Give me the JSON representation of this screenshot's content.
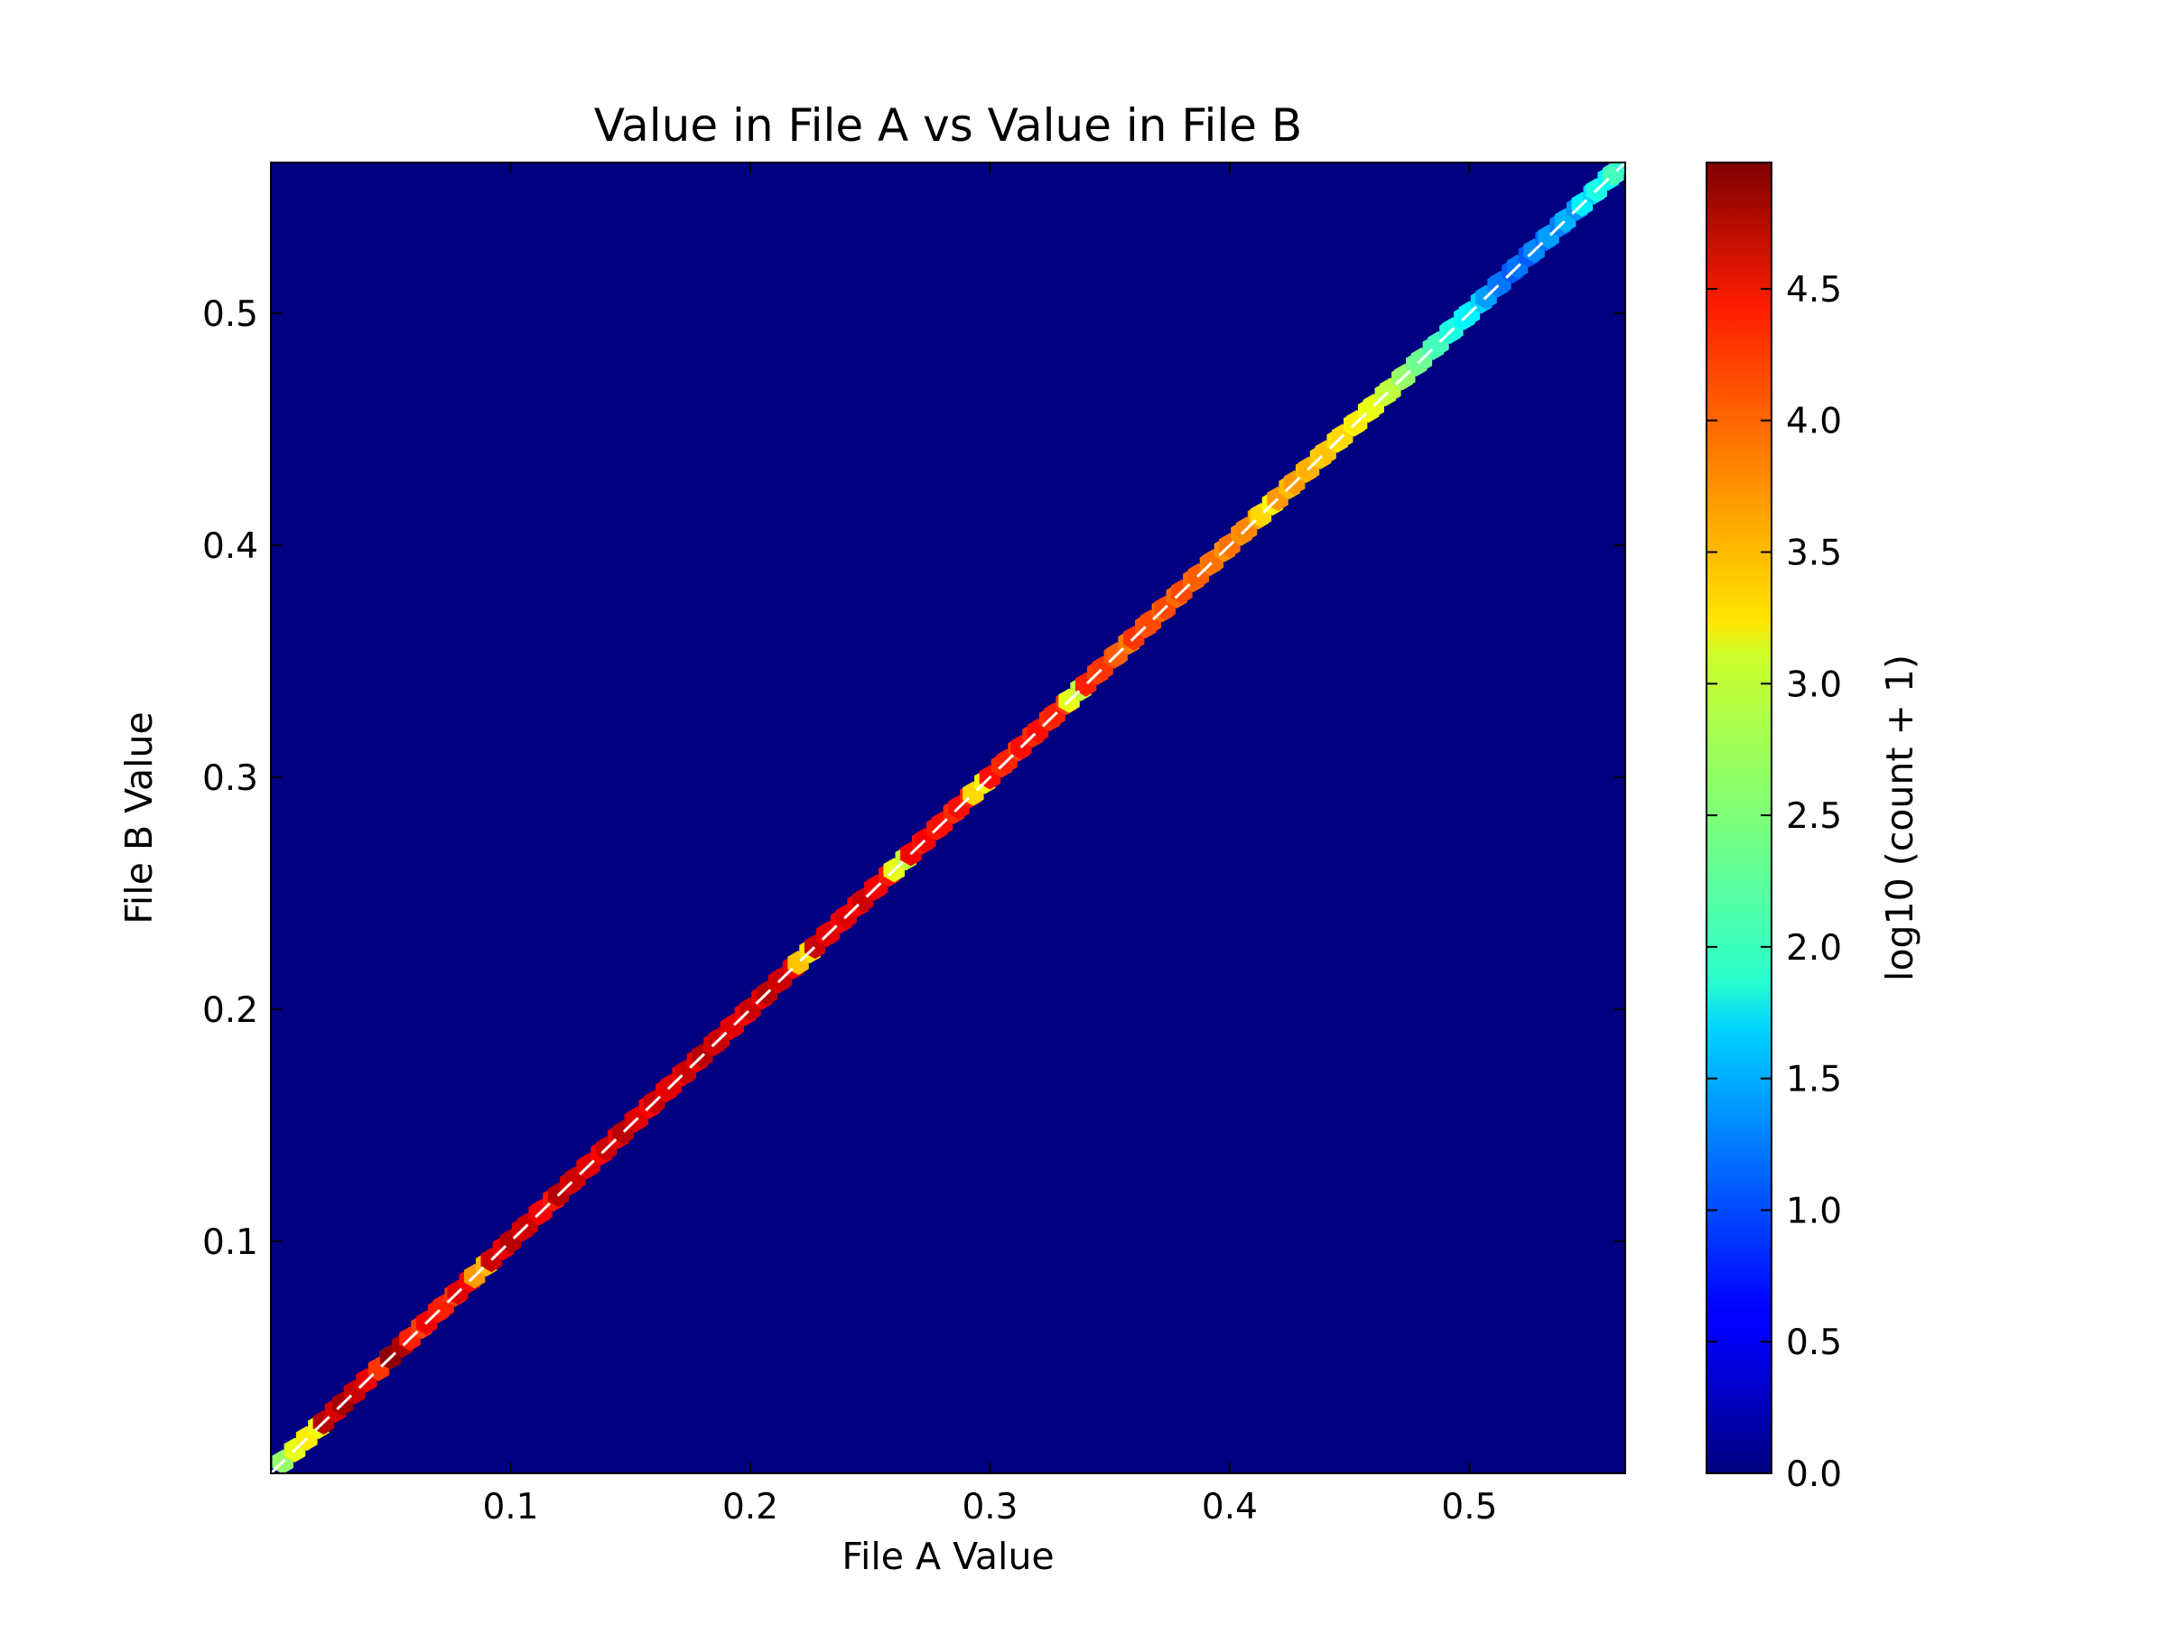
{
  "chart_data": {
    "type": "heatmap",
    "subtype": "hexbin",
    "title": "Value in File A vs Value in File B",
    "xlabel": "File A Value",
    "ylabel": "File B Value",
    "xlim": [
      0.0,
      0.565
    ],
    "ylim": [
      0.0,
      0.565
    ],
    "x_ticks": [
      0.1,
      0.2,
      0.3,
      0.4,
      0.5
    ],
    "x_tick_labels": [
      "0.1",
      "0.2",
      "0.3",
      "0.4",
      "0.5"
    ],
    "y_ticks": [
      0.1,
      0.2,
      0.3,
      0.4,
      0.5
    ],
    "y_tick_labels": [
      "0.1",
      "0.2",
      "0.3",
      "0.4",
      "0.5"
    ],
    "background_color": "#000080",
    "reference_line": {
      "style": "dashed",
      "color": "#ffffff",
      "from": [
        0.0,
        0.0
      ],
      "to": [
        0.565,
        0.565
      ]
    },
    "colorbar": {
      "label": "log10 (count + 1)",
      "colormap": "jet",
      "range": [
        0.0,
        4.98
      ],
      "ticks": [
        0.0,
        0.5,
        1.0,
        1.5,
        2.0,
        2.5,
        3.0,
        3.5,
        4.0,
        4.5
      ],
      "tick_labels": [
        "0.0",
        "0.5",
        "1.0",
        "1.5",
        "2.0",
        "2.5",
        "3.0",
        "3.5",
        "4.0",
        "4.5"
      ]
    },
    "grid": false,
    "bins": {
      "x": [
        0.005,
        0.01,
        0.015,
        0.022,
        0.03,
        0.035,
        0.045,
        0.05,
        0.058,
        0.065,
        0.072,
        0.078,
        0.085,
        0.092,
        0.1,
        0.107,
        0.113,
        0.12,
        0.127,
        0.133,
        0.14,
        0.147,
        0.153,
        0.16,
        0.167,
        0.173,
        0.18,
        0.187,
        0.193,
        0.2,
        0.207,
        0.213,
        0.22,
        0.227,
        0.233,
        0.24,
        0.247,
        0.253,
        0.26,
        0.267,
        0.273,
        0.28,
        0.287,
        0.293,
        0.3,
        0.307,
        0.313,
        0.32,
        0.327,
        0.333,
        0.34,
        0.347,
        0.353,
        0.36,
        0.367,
        0.373,
        0.38,
        0.387,
        0.393,
        0.4,
        0.407,
        0.413,
        0.42,
        0.427,
        0.433,
        0.44,
        0.447,
        0.453,
        0.46,
        0.467,
        0.473,
        0.48,
        0.487,
        0.493,
        0.5,
        0.507,
        0.513,
        0.52,
        0.527,
        0.533,
        0.54,
        0.547,
        0.553,
        0.56
      ],
      "values": [
        2.6,
        3.0,
        3.2,
        4.7,
        4.8,
        4.6,
        4.1,
        4.9,
        4.2,
        4.4,
        4.2,
        4.5,
        3.6,
        4.6,
        4.7,
        4.6,
        4.4,
        4.7,
        4.6,
        4.5,
        4.6,
        4.7,
        4.5,
        4.6,
        4.5,
        4.6,
        4.7,
        4.6,
        4.5,
        4.6,
        4.7,
        4.6,
        3.4,
        4.6,
        4.5,
        4.5,
        4.6,
        4.4,
        3.0,
        4.4,
        4.4,
        4.3,
        4.3,
        3.3,
        4.3,
        4.2,
        4.3,
        4.3,
        4.2,
        3.0,
        4.2,
        4.1,
        3.9,
        4.1,
        4.0,
        4.0,
        4.0,
        3.9,
        3.8,
        3.8,
        3.7,
        3.3,
        3.6,
        3.6,
        3.5,
        3.4,
        3.3,
        3.2,
        3.0,
        2.8,
        2.6,
        2.4,
        2.2,
        2.0,
        1.8,
        1.4,
        1.2,
        1.2,
        1.3,
        1.4,
        1.5,
        1.8,
        2.0,
        2.2
      ]
    }
  }
}
